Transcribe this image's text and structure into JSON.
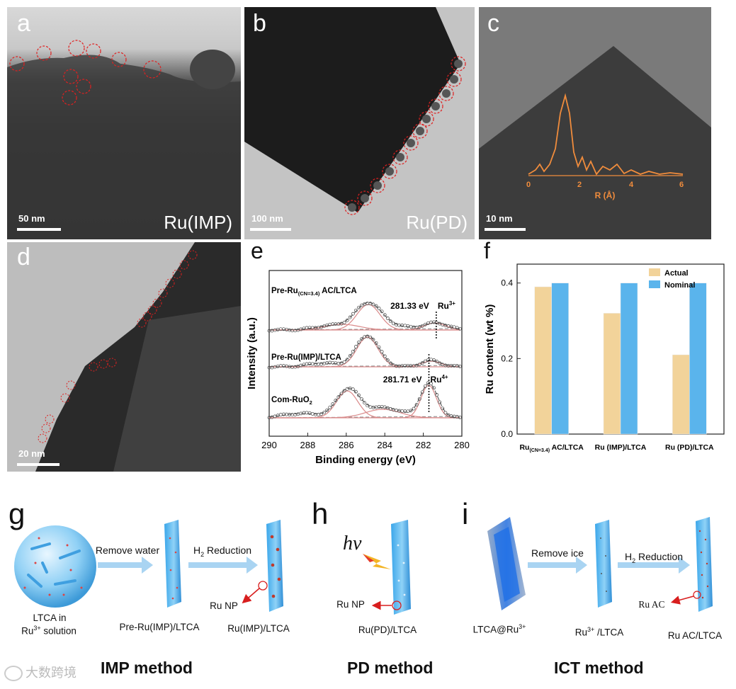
{
  "panels": {
    "a": {
      "letter": "a",
      "caption": "Ru(IMP)",
      "scale": "50 nm"
    },
    "b": {
      "letter": "b",
      "caption": "Ru(PD)",
      "scale": "100 nm"
    },
    "c": {
      "letter": "c",
      "scale": "10 nm",
      "inset_xlabel": "R (Å)",
      "inset_ticks": [
        "0",
        "2",
        "4",
        "6"
      ]
    },
    "d": {
      "letter": "d",
      "scale": "20 nm"
    },
    "e": {
      "letter": "e"
    },
    "f": {
      "letter": "f"
    },
    "g": {
      "letter": "g"
    },
    "h": {
      "letter": "h"
    },
    "i": {
      "letter": "i"
    }
  },
  "chart_data": [
    {
      "type": "line",
      "panel": "e",
      "xlabel": "Binding energy (eV)",
      "ylabel": "Intensity (a.u.)",
      "xlim": [
        290,
        280
      ],
      "xticks": [
        "290",
        "288",
        "286",
        "284",
        "282",
        "280"
      ],
      "series": [
        {
          "name": "Pre-Ru(CN=3.4) AC/LTCA",
          "label_main": "Pre-Ru",
          "label_sub": "(CN=3.4)",
          "label_tail": " AC/LTCA"
        },
        {
          "name": "Pre-Ru(IMP)/LTCA",
          "label_main": "Pre-Ru(IMP)/LTCA"
        },
        {
          "name": "Com-RuO2",
          "label_main": "Com-RuO",
          "label_sub": "2"
        }
      ],
      "annotations": [
        {
          "text": "281.33 eV",
          "ion": "Ru",
          "charge": "3+",
          "x": 281.33
        },
        {
          "text": "281.71 eV",
          "ion": "Ru",
          "charge": "4+",
          "x": 281.71
        }
      ]
    },
    {
      "type": "bar",
      "panel": "f",
      "ylabel": "Ru content (wt %)",
      "ylim": [
        0.0,
        0.45
      ],
      "yticks": [
        "0.0",
        "0.2",
        "0.4"
      ],
      "categories": [
        "Ru(CN=3.4) AC/LTCA",
        "Ru (IMP)/LTCA",
        "Ru (PD)/LTCA"
      ],
      "category_labels": [
        {
          "main": "Ru",
          "sub": "(CN=3.4)",
          "tail": " AC/LTCA"
        },
        {
          "main": "Ru (IMP)/LTCA"
        },
        {
          "main": "Ru (PD)/LTCA"
        }
      ],
      "series": [
        {
          "name": "Actual",
          "values": [
            0.39,
            0.32,
            0.21
          ],
          "color": "#f2d39a"
        },
        {
          "name": "Nominal",
          "values": [
            0.4,
            0.4,
            0.4
          ],
          "color": "#5ab4ec"
        }
      ],
      "legend": "top-right"
    }
  ],
  "schemes": {
    "g": {
      "start_label_1": "LTCA in",
      "start_label_2_main": "Ru",
      "start_label_2_sup": "3+",
      "start_label_2_tail": " solution",
      "arrow1": "Remove water",
      "arrow2_main": "H",
      "arrow2_sub": "2",
      "arrow2_tail": " Reduction",
      "mid_label": "Pre-Ru(IMP)/LTCA",
      "end_label": "Ru(IMP)/LTCA",
      "np_label": "Ru NP",
      "method": "IMP method"
    },
    "h": {
      "hv": "hv",
      "np_label": "Ru NP",
      "end_label": "Ru(PD)/LTCA",
      "method": "PD method"
    },
    "i": {
      "start_label_main": "LTCA@Ru",
      "start_label_sup": "3+",
      "arrow1": "Remove ice",
      "arrow2_main": "H",
      "arrow2_sub": "2",
      "arrow2_tail": " Reduction",
      "mid_label_main": "Ru",
      "mid_label_sup": "3+",
      "mid_label_tail": " /LTCA",
      "ac_label": "Ru AC",
      "end_label": "Ru AC/LTCA",
      "method": "ICT method"
    }
  },
  "watermark": "大数跨境",
  "colors": {
    "actual": "#f2d39a",
    "nominal": "#5ab4ec",
    "fit": "#d98a8a",
    "circle": "#e02020",
    "inset": "#f08c3c"
  }
}
